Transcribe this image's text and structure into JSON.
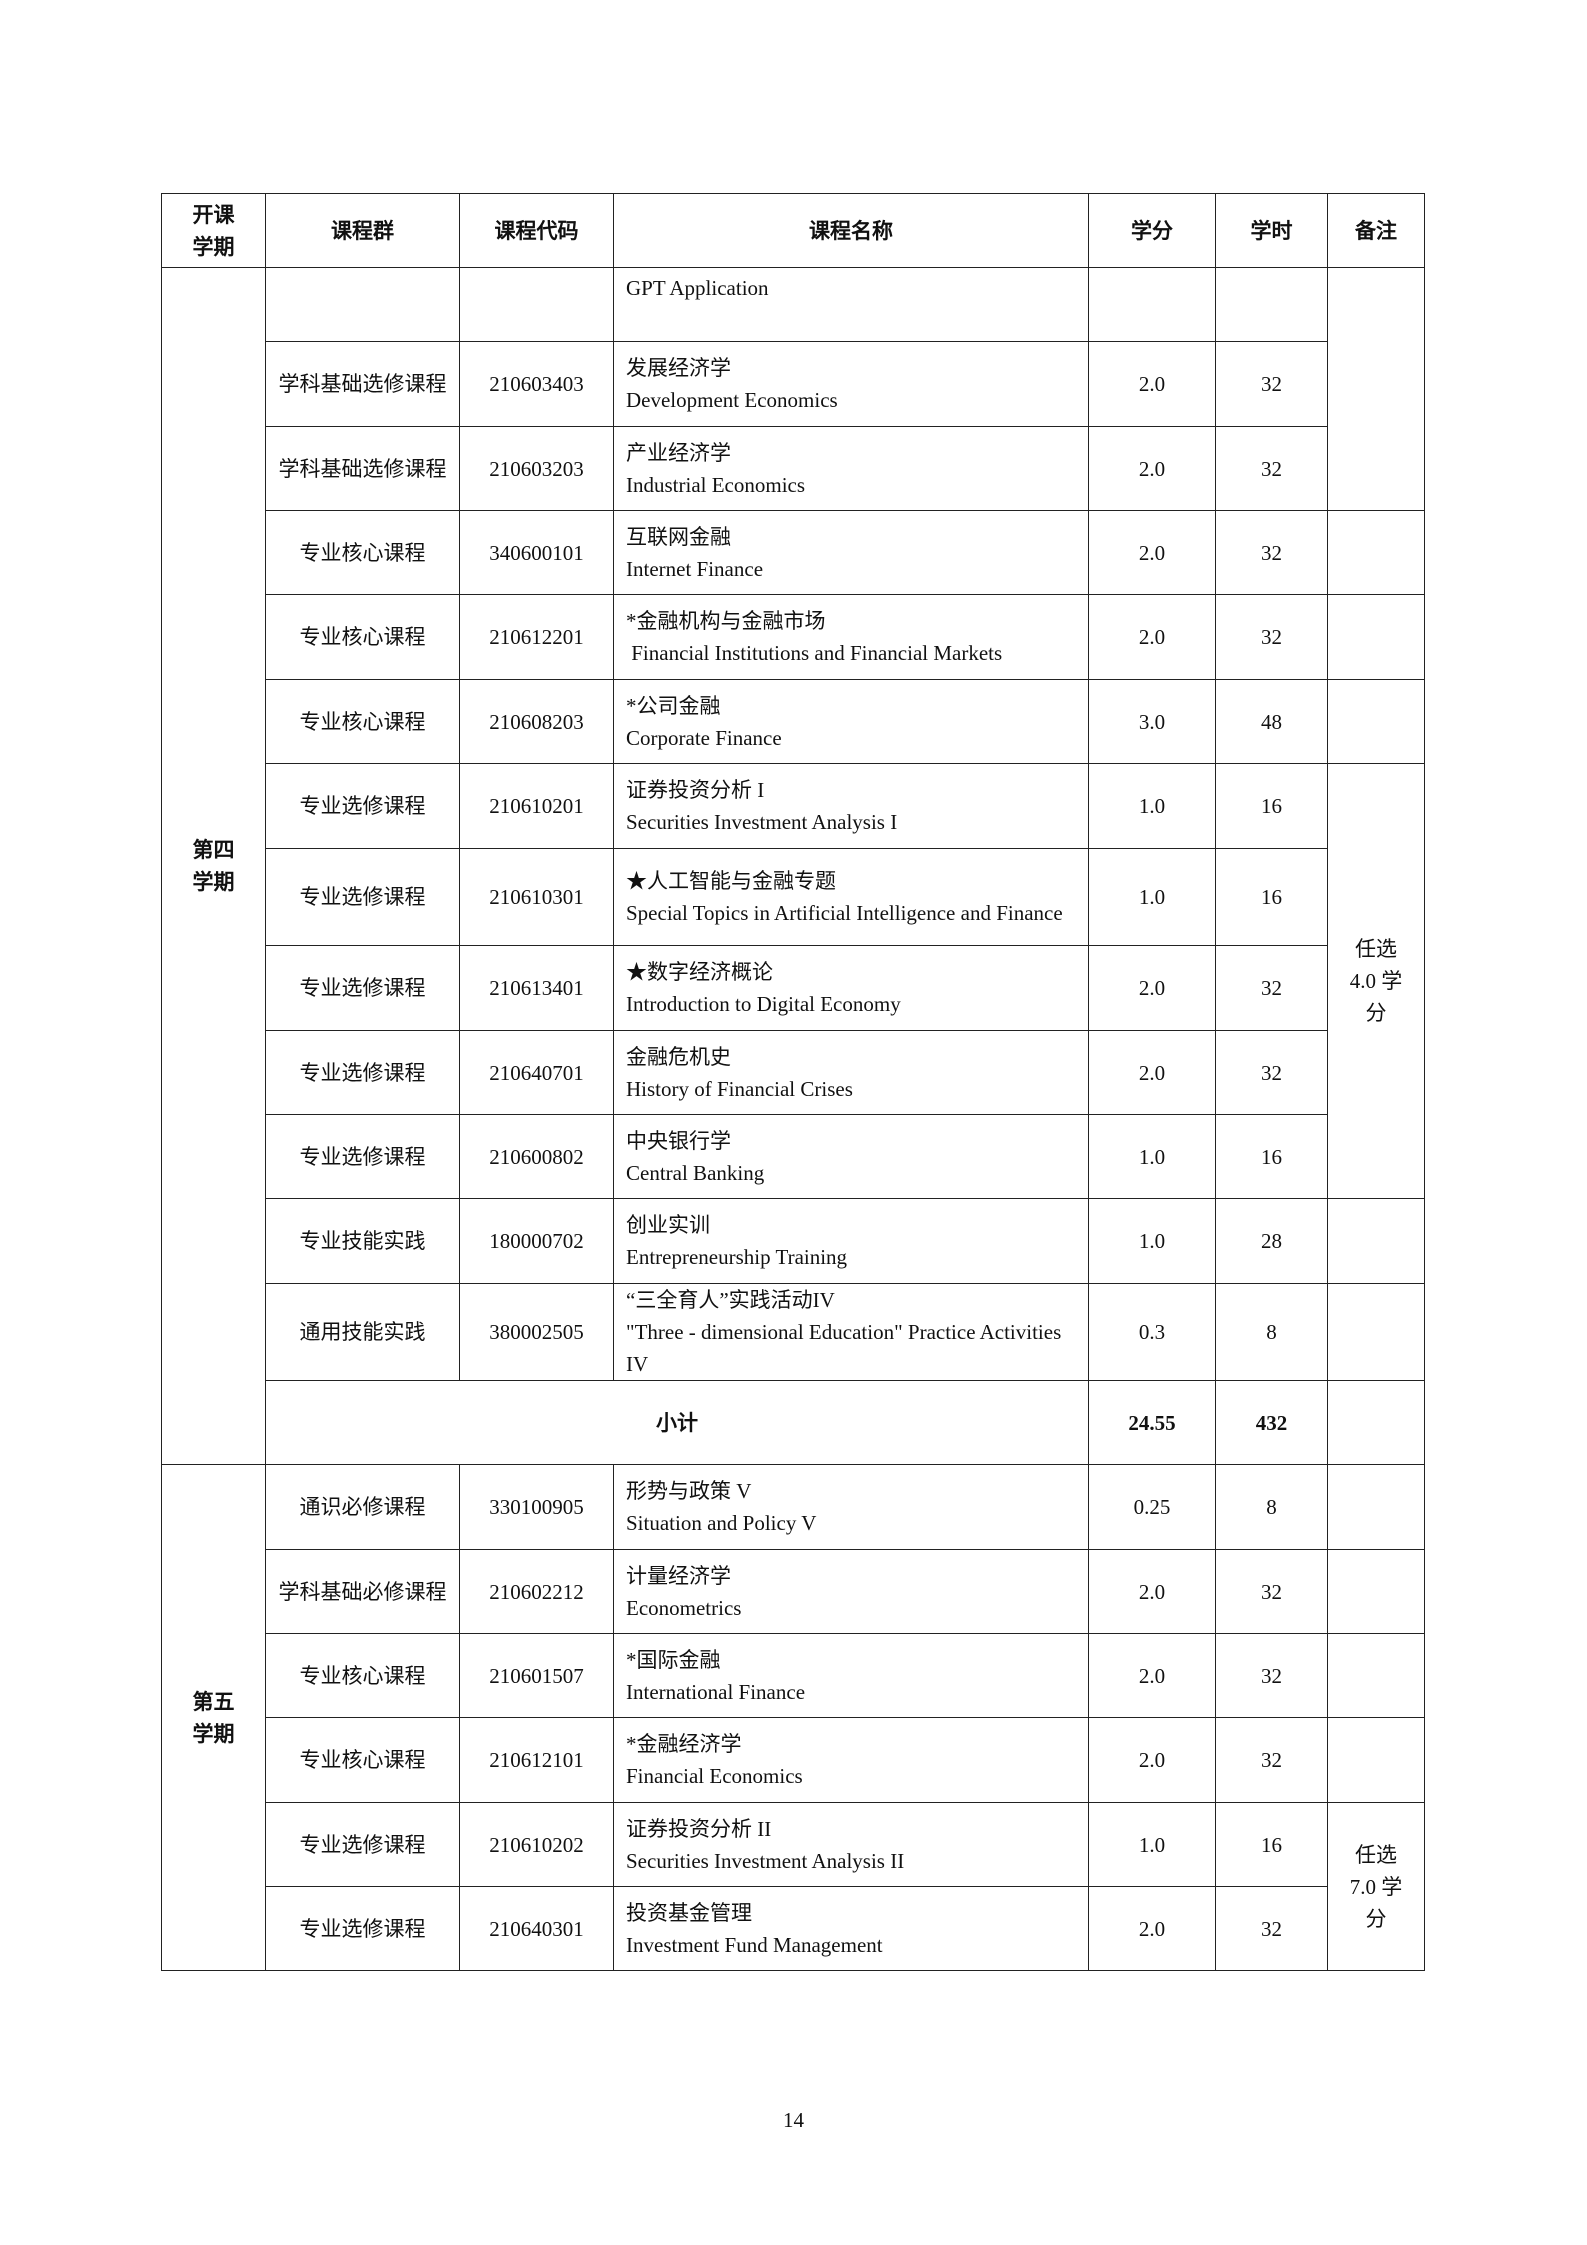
{
  "table": {
    "headers": [
      "开课\n学期",
      "课程群",
      "课程代码",
      "课程名称",
      "学分",
      "学时",
      "备注"
    ],
    "semesters": [
      {
        "term": "第四\n学期",
        "rows": [
          {
            "group": "",
            "code": "",
            "name_cn": "",
            "name_en": "GPT Application",
            "credit": "",
            "hours": "",
            "h": 74,
            "top": true
          },
          {
            "group": "学科基础选修课程",
            "code": "210603403",
            "name_cn": "发展经济学",
            "name_en": "Development Economics",
            "credit": "2.0",
            "hours": "32",
            "h": 85
          },
          {
            "group": "学科基础选修课程",
            "code": "210603203",
            "name_cn": "产业经济学",
            "name_en": "Industrial Economics",
            "credit": "2.0",
            "hours": "32",
            "h": 84
          },
          {
            "group": "专业核心课程",
            "code": "340600101",
            "name_cn": "互联网金融",
            "name_en": "Internet Finance",
            "credit": "2.0",
            "hours": "32",
            "h": 84
          },
          {
            "group": "专业核心课程",
            "code": "210612201",
            "name_cn": "*金融机构与金融市场",
            "name_en": " Financial Institutions and Financial Markets",
            "credit": "2.0",
            "hours": "32",
            "h": 85
          },
          {
            "group": "专业核心课程",
            "code": "210608203",
            "name_cn": "*公司金融",
            "name_en": "Corporate Finance",
            "credit": "3.0",
            "hours": "48",
            "h": 84
          },
          {
            "group": "专业选修课程",
            "code": "210610201",
            "name_cn": "证券投资分析 I",
            "name_en": "Securities Investment Analysis I",
            "credit": "1.0",
            "hours": "16",
            "h": 85
          },
          {
            "group": "专业选修课程",
            "code": "210610301",
            "name_cn": "★人工智能与金融专题",
            "name_en": "Special Topics in Artificial Intelligence and Finance",
            "credit": "1.0",
            "hours": "16",
            "h": 97
          },
          {
            "group": "专业选修课程",
            "code": "210613401",
            "name_cn": "★数字经济概论",
            "name_en": "Introduction to Digital Economy",
            "credit": "2.0",
            "hours": "32",
            "h": 85
          },
          {
            "group": "专业选修课程",
            "code": "210640701",
            "name_cn": "金融危机史",
            "name_en": "History of Financial Crises",
            "credit": "2.0",
            "hours": "32",
            "h": 84
          },
          {
            "group": "专业选修课程",
            "code": "210600802",
            "name_cn": "中央银行学",
            "name_en": "Central Banking",
            "credit": "1.0",
            "hours": "16",
            "h": 84
          },
          {
            "group": "专业技能实践",
            "code": "180000702",
            "name_cn": "创业实训",
            "name_en": "Entrepreneurship Training",
            "credit": "1.0",
            "hours": "28",
            "h": 85
          },
          {
            "group": "通用技能实践",
            "code": "380002505",
            "name_cn": "“三全育人”实践活动IV",
            "name_en": "\"Three - dimensional Education\" Practice Activities IV",
            "credit": "0.3",
            "hours": "8",
            "h": 97
          }
        ],
        "remarks": [
          {
            "text": "",
            "span": 3
          },
          {
            "text": "",
            "span": 1
          },
          {
            "text": "",
            "span": 1
          },
          {
            "text": "",
            "span": 1
          },
          {
            "text": "任选\n4.0 学\n分",
            "span": 5
          },
          {
            "text": "",
            "span": 1
          },
          {
            "text": "",
            "span": 1
          }
        ],
        "subtotal": {
          "label": "小计",
          "credit": "24.55",
          "hours": "432",
          "remark": ""
        }
      },
      {
        "term": "第五\n学期",
        "rows": [
          {
            "group": "通识必修课程",
            "code": "330100905",
            "name_cn": "形势与政策  V",
            "name_en": "Situation and Policy V",
            "credit": "0.25",
            "hours": "8",
            "h": 85
          },
          {
            "group": "学科基础必修课程",
            "code": "210602212",
            "name_cn": "计量经济学",
            "name_en": "Econometrics",
            "credit": "2.0",
            "hours": "32",
            "h": 84
          },
          {
            "group": "专业核心课程",
            "code": "210601507",
            "name_cn": "*国际金融",
            "name_en": "International Finance",
            "credit": "2.0",
            "hours": "32",
            "h": 84
          },
          {
            "group": "专业核心课程",
            "code": "210612101",
            "name_cn": "*金融经济学",
            "name_en": "Financial Economics",
            "credit": "2.0",
            "hours": "32",
            "h": 85
          },
          {
            "group": "专业选修课程",
            "code": "210610202",
            "name_cn": "证券投资分析 II",
            "name_en": "Securities Investment Analysis II",
            "credit": "1.0",
            "hours": "16",
            "h": 84
          },
          {
            "group": "专业选修课程",
            "code": "210640301",
            "name_cn": "投资基金管理",
            "name_en": "Investment Fund Management",
            "credit": "2.0",
            "hours": "32",
            "h": 84
          }
        ],
        "remarks": [
          {
            "text": "",
            "span": 1
          },
          {
            "text": "",
            "span": 1
          },
          {
            "text": "",
            "span": 1
          },
          {
            "text": "",
            "span": 1
          },
          {
            "text": "任选\n7.0 学\n分",
            "span": 2
          }
        ]
      }
    ]
  },
  "page_number": "14"
}
